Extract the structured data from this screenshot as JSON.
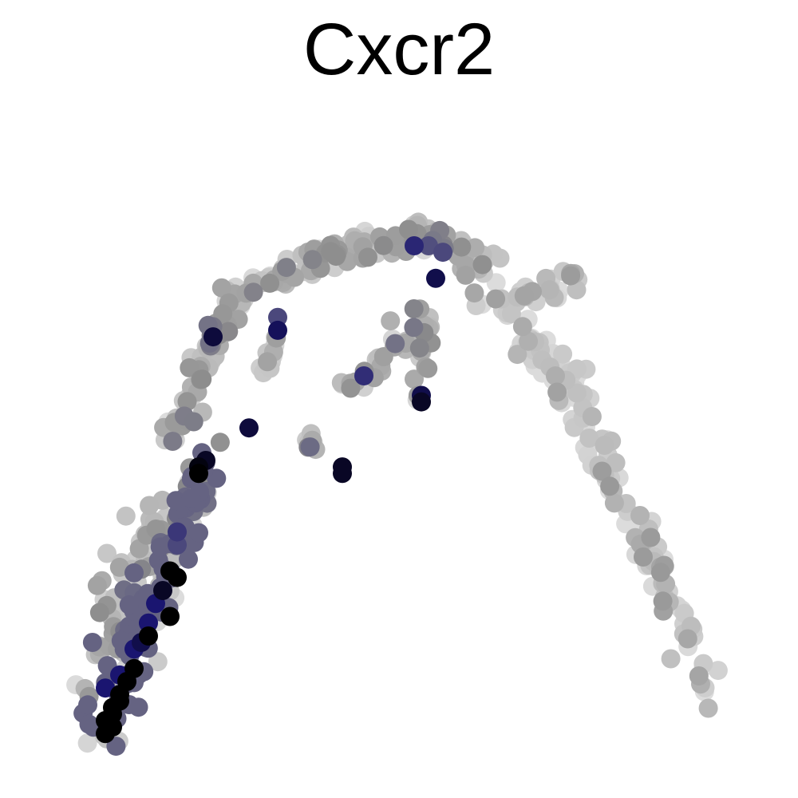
{
  "chart_data": {
    "type": "scatter",
    "title": "Cxcr2",
    "xlabel": "",
    "ylabel": "",
    "axes_visible": false,
    "grid": false,
    "legend": "none",
    "xlim": [
      0,
      100
    ],
    "ylim": [
      0,
      100
    ],
    "color_scale": {
      "low": "#dcdcdc",
      "mid": "#8c8c8c",
      "high": "#1a1570",
      "max": "#000000"
    },
    "paths": [
      {
        "name": "left-arm-lower",
        "from": [
          8,
          5
        ],
        "to": [
          22,
          48
        ],
        "count": 120,
        "spread": 2.6,
        "exp_base": 0.55,
        "exp_gradient": 0.9
      },
      {
        "name": "left-arm-wide",
        "from": [
          6,
          12
        ],
        "to": [
          16,
          40
        ],
        "count": 70,
        "spread": 3.0,
        "exp_base": 0.3,
        "exp_gradient": 0.5
      },
      {
        "name": "left-arm-upper",
        "from": [
          17,
          50
        ],
        "to": [
          26,
          72
        ],
        "count": 70,
        "spread": 1.6,
        "exp_base": 0.35,
        "exp_gradient": -0.1
      },
      {
        "name": "top-left",
        "from": [
          25,
          72
        ],
        "to": [
          40,
          79
        ],
        "count": 55,
        "spread": 1.6,
        "exp_base": 0.3,
        "exp_gradient": 0.0
      },
      {
        "name": "top-center",
        "from": [
          38,
          79
        ],
        "to": [
          52,
          81
        ],
        "count": 55,
        "spread": 1.4,
        "exp_base": 0.25,
        "exp_gradient": 0.05
      },
      {
        "name": "top-right",
        "from": [
          50,
          82
        ],
        "to": [
          62,
          77
        ],
        "count": 50,
        "spread": 1.8,
        "exp_base": 0.35,
        "exp_gradient": 0.0
      },
      {
        "name": "right-upper",
        "from": [
          60,
          74
        ],
        "to": [
          74,
          57
        ],
        "count": 60,
        "spread": 2.2,
        "exp_base": 0.12,
        "exp_gradient": 0.05
      },
      {
        "name": "right-lower",
        "from": [
          74,
          55
        ],
        "to": [
          93,
          10
        ],
        "count": 90,
        "spread": 1.8,
        "exp_base": 0.15,
        "exp_gradient": 0.1
      },
      {
        "name": "right-spur",
        "from": [
          63,
          72
        ],
        "to": [
          75,
          75
        ],
        "count": 25,
        "spread": 1.4,
        "exp_base": 0.15,
        "exp_gradient": 0.05
      },
      {
        "name": "inner-branch-1",
        "from": [
          53,
          68
        ],
        "to": [
          41,
          58
        ],
        "count": 28,
        "spread": 1.3,
        "exp_base": 0.3,
        "exp_gradient": 0.1
      },
      {
        "name": "inner-branch-2",
        "from": [
          52,
          70
        ],
        "to": [
          52,
          56
        ],
        "count": 18,
        "spread": 1.0,
        "exp_base": 0.35,
        "exp_gradient": 0.1
      },
      {
        "name": "inner-branch-3",
        "from": [
          32,
          66
        ],
        "to": [
          30,
          60
        ],
        "count": 14,
        "spread": 1.0,
        "exp_base": 0.3,
        "exp_gradient": 0.0
      },
      {
        "name": "inner-branch-4",
        "from": [
          37,
          51
        ],
        "to": [
          36,
          49
        ],
        "count": 8,
        "spread": 0.8,
        "exp_base": 0.35,
        "exp_gradient": 0.0
      }
    ],
    "highlight_points": [
      {
        "x": 23,
        "y": 66,
        "expr": 0.92
      },
      {
        "x": 32,
        "y": 67,
        "expr": 0.88
      },
      {
        "x": 32,
        "y": 69,
        "expr": 0.7
      },
      {
        "x": 51,
        "y": 80,
        "expr": 0.8
      },
      {
        "x": 53,
        "y": 80,
        "expr": 0.68
      },
      {
        "x": 55,
        "y": 79,
        "expr": 0.7
      },
      {
        "x": 54,
        "y": 75,
        "expr": 0.9
      },
      {
        "x": 44,
        "y": 60,
        "expr": 0.78
      },
      {
        "x": 52,
        "y": 56,
        "expr": 0.95
      },
      {
        "x": 52,
        "y": 57,
        "expr": 0.9
      },
      {
        "x": 28,
        "y": 52,
        "expr": 0.92
      },
      {
        "x": 41,
        "y": 46,
        "expr": 0.95
      },
      {
        "x": 41,
        "y": 45,
        "expr": 0.95
      },
      {
        "x": 21,
        "y": 46,
        "expr": 0.98
      },
      {
        "x": 21,
        "y": 45,
        "expr": 1.0
      },
      {
        "x": 22,
        "y": 47,
        "expr": 0.95
      },
      {
        "x": 18,
        "y": 36,
        "expr": 0.75
      },
      {
        "x": 18,
        "y": 34,
        "expr": 0.7
      },
      {
        "x": 17,
        "y": 30,
        "expr": 1.0
      },
      {
        "x": 18,
        "y": 29,
        "expr": 1.0
      },
      {
        "x": 16,
        "y": 27,
        "expr": 0.95
      },
      {
        "x": 17,
        "y": 23,
        "expr": 1.0
      },
      {
        "x": 14,
        "y": 20,
        "expr": 1.0
      },
      {
        "x": 12,
        "y": 15,
        "expr": 1.0
      },
      {
        "x": 10,
        "y": 11,
        "expr": 1.0
      },
      {
        "x": 9,
        "y": 9,
        "expr": 1.0
      },
      {
        "x": 8,
        "y": 7,
        "expr": 1.0
      },
      {
        "x": 9,
        "y": 6,
        "expr": 1.0
      },
      {
        "x": 8,
        "y": 5,
        "expr": 1.0
      },
      {
        "x": 9,
        "y": 8,
        "expr": 1.0
      },
      {
        "x": 10,
        "y": 10,
        "expr": 1.0
      },
      {
        "x": 11,
        "y": 13,
        "expr": 1.0
      },
      {
        "x": 13,
        "y": 19,
        "expr": 0.9
      },
      {
        "x": 15,
        "y": 25,
        "expr": 0.85
      },
      {
        "x": 12,
        "y": 18,
        "expr": 0.85
      },
      {
        "x": 10,
        "y": 14,
        "expr": 0.85
      },
      {
        "x": 8,
        "y": 12,
        "expr": 0.85
      },
      {
        "x": 14,
        "y": 22,
        "expr": 0.85
      }
    ]
  }
}
